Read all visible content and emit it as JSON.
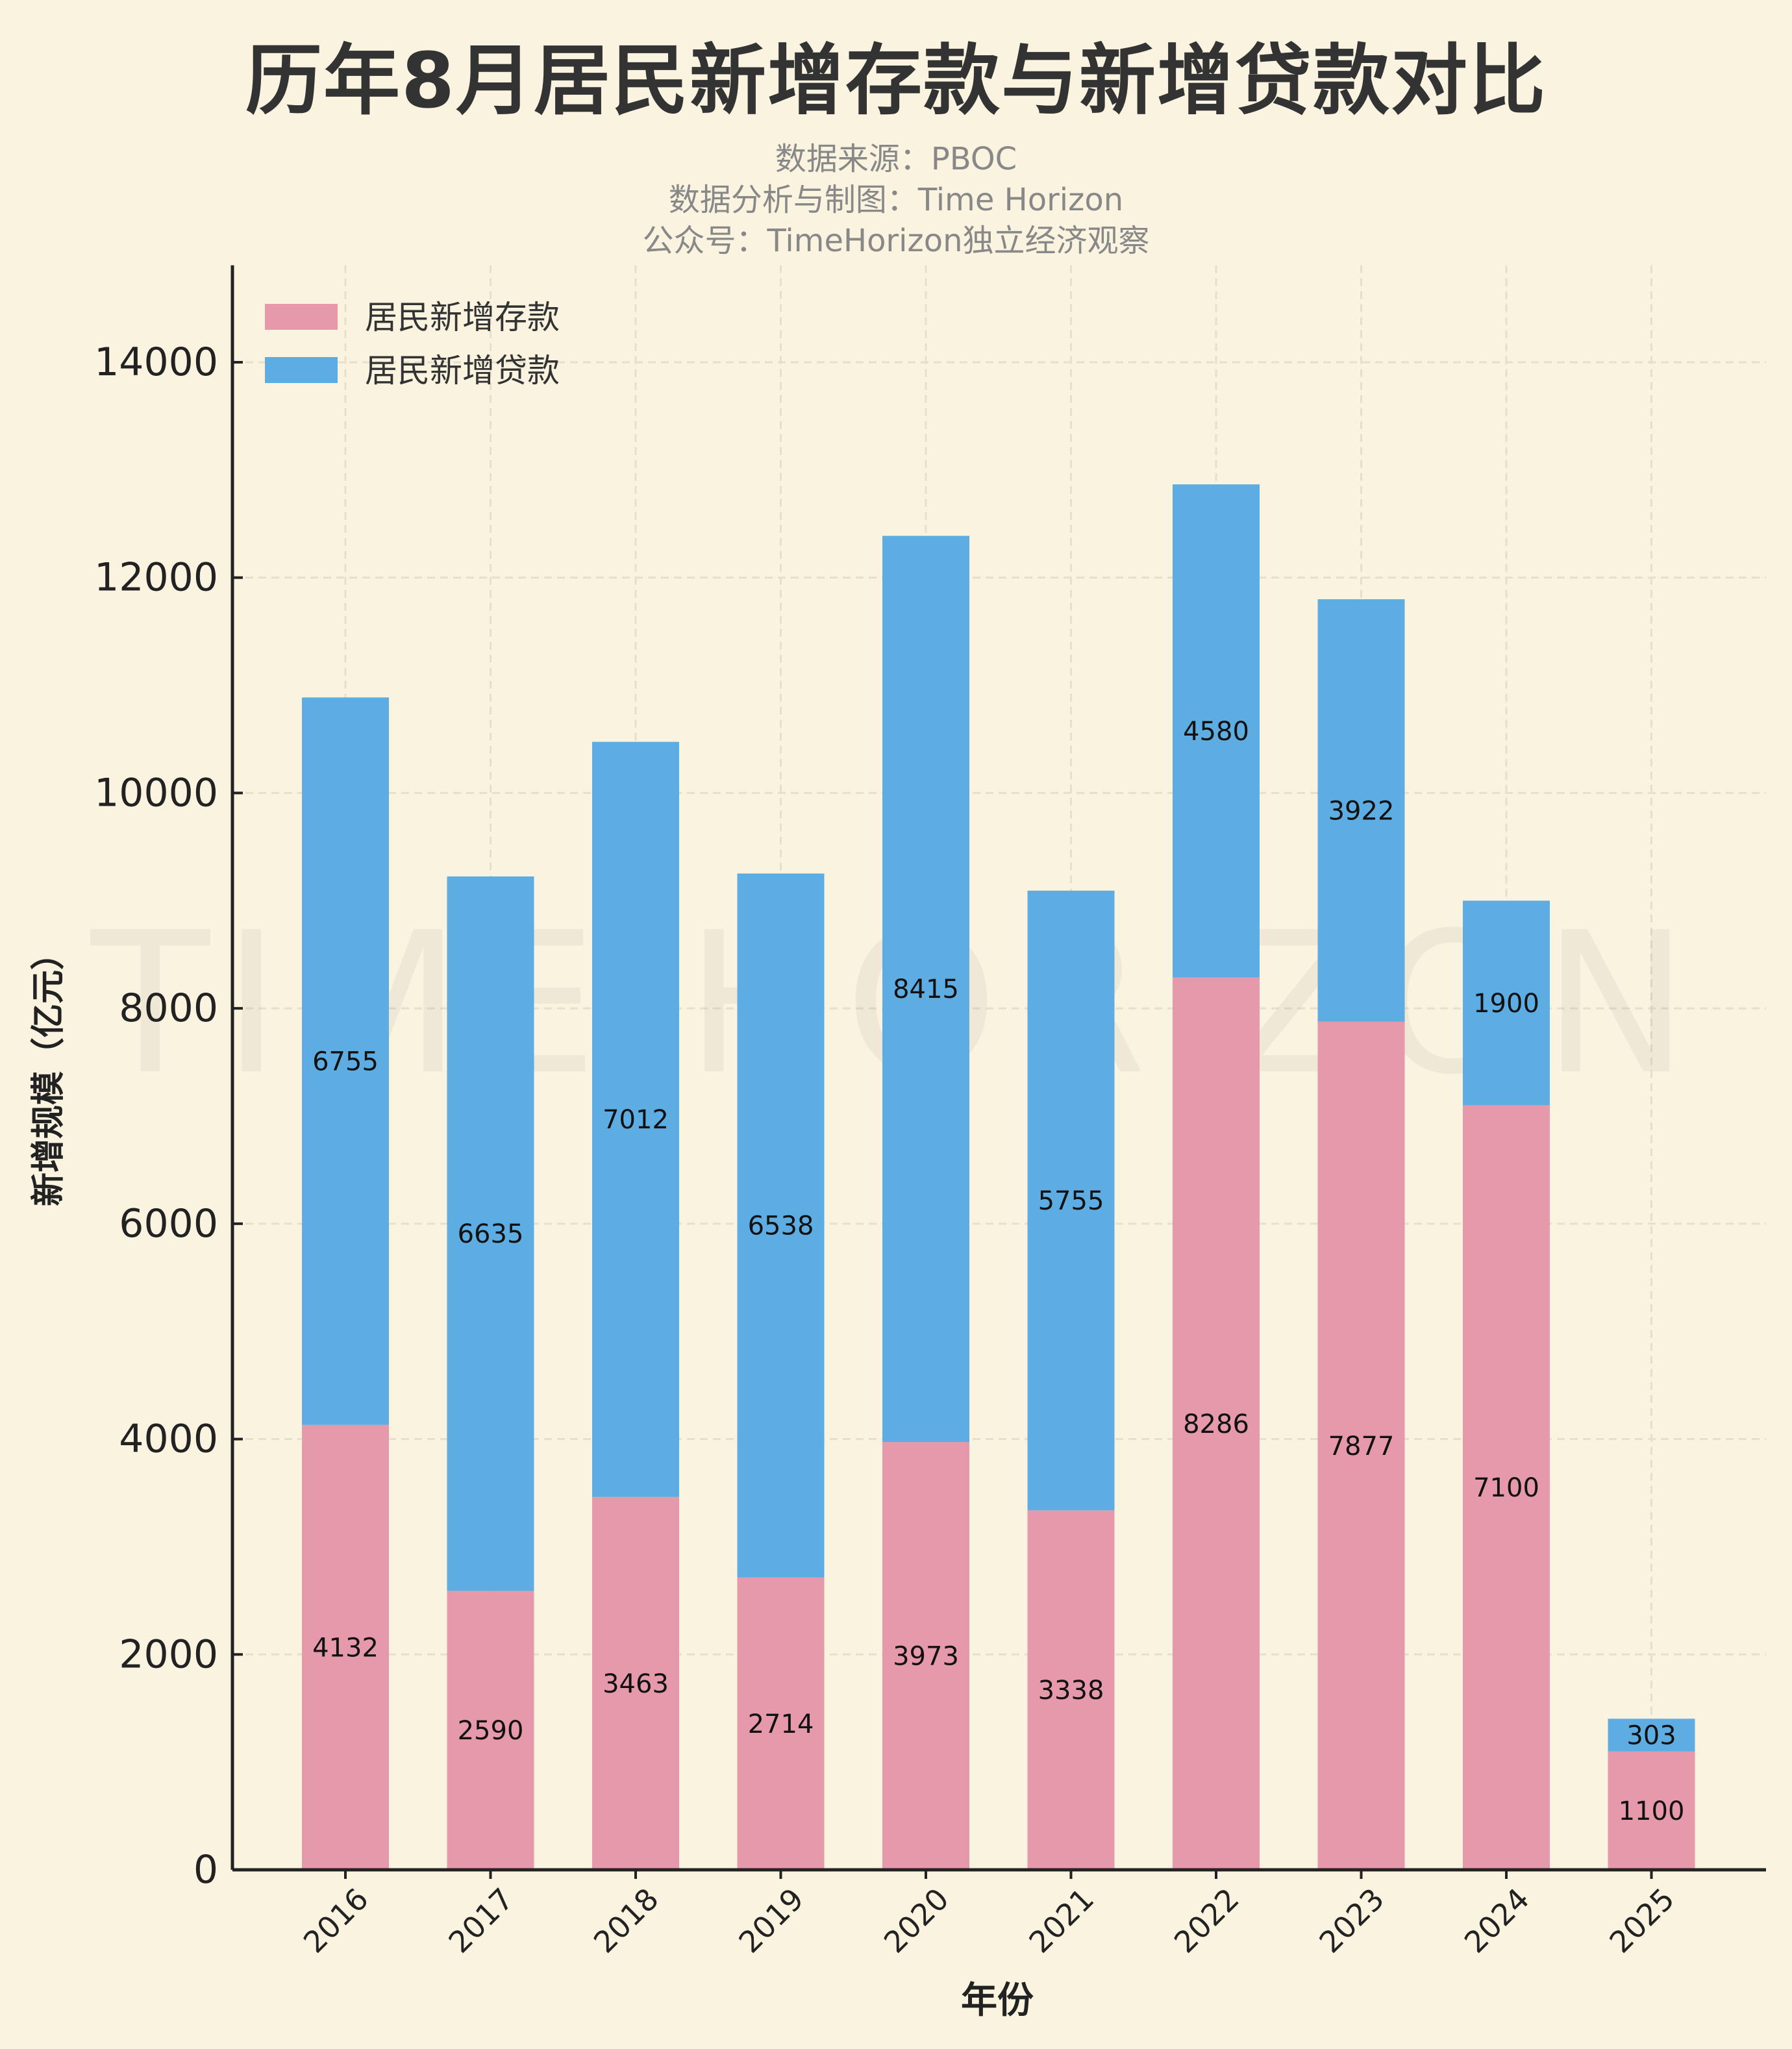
{
  "chart_data": {
    "type": "bar",
    "stacked": true,
    "title": "历年8月居民新增存款与新增贷款对比",
    "subtitle_lines": [
      "数据来源：PBOC",
      "数据分析与制图：Time Horizon",
      "公众号：TimeHorizon独立经济观察"
    ],
    "watermark": "TIME HORIZON",
    "xlabel": "年份",
    "ylabel": "新增规模（亿元）",
    "categories": [
      "2016",
      "2017",
      "2018",
      "2019",
      "2020",
      "2021",
      "2022",
      "2023",
      "2024",
      "2025"
    ],
    "series": [
      {
        "name": "居民新增存款",
        "color": "#e699ab",
        "values": [
          4132,
          2590,
          3463,
          2714,
          3973,
          3338,
          8286,
          7877,
          7100,
          1100
        ]
      },
      {
        "name": "居民新增贷款",
        "color": "#5dade2",
        "values": [
          6755,
          6635,
          7012,
          6538,
          8415,
          5755,
          4580,
          3922,
          1900,
          303
        ]
      }
    ],
    "yticks": [
      0,
      2000,
      4000,
      6000,
      8000,
      10000,
      12000,
      14000
    ],
    "ylim": [
      0,
      14900
    ],
    "grid": true,
    "legend_position": "top-left"
  }
}
